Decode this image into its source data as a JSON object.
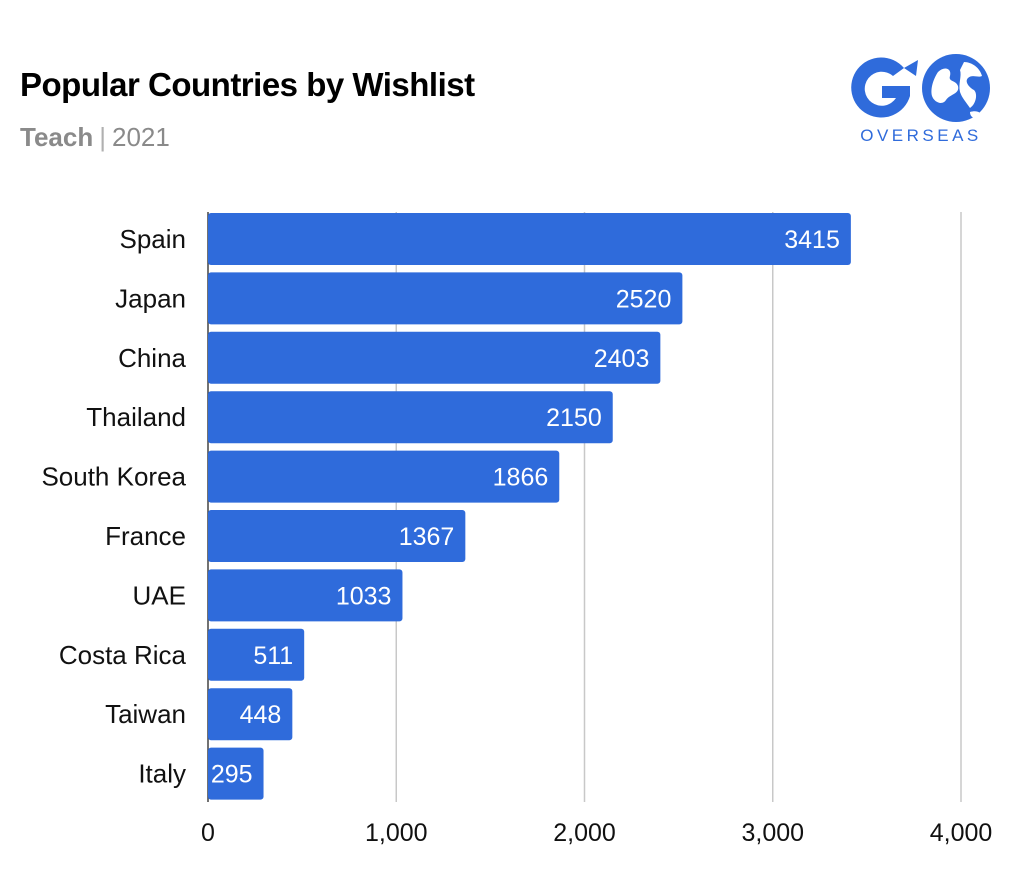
{
  "header": {
    "title": "Popular Countries by Wishlist",
    "category": "Teach",
    "separator": "|",
    "year": "2021"
  },
  "logo": {
    "letters": "GO",
    "word": "OVERSEAS",
    "color": "#2f6bdb"
  },
  "chart_data": {
    "type": "bar",
    "orientation": "horizontal",
    "title": "Popular Countries by Wishlist",
    "subtitle": "Teach | 2021",
    "categories": [
      "Spain",
      "Japan",
      "China",
      "Thailand",
      "South Korea",
      "France",
      "UAE",
      "Costa Rica",
      "Taiwan",
      "Italy"
    ],
    "values": [
      3415,
      2520,
      2403,
      2150,
      1866,
      1367,
      1033,
      511,
      448,
      295
    ],
    "xlim": [
      0,
      4000
    ],
    "xticks": [
      0,
      1000,
      2000,
      3000,
      4000
    ],
    "xtick_labels": [
      "0",
      "1,000",
      "2,000",
      "3,000",
      "4,000"
    ],
    "data_labels": true,
    "grid": "vertical",
    "legend": "none",
    "bar_color": "#2f6bdb",
    "grid_color": "#c8c8c8"
  }
}
